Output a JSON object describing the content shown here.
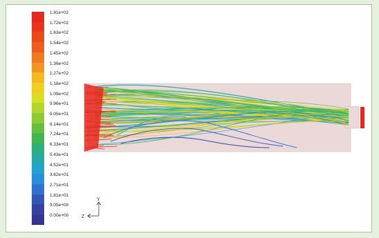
{
  "legend": {
    "labels": [
      "1.81e+02",
      "1.72e+02",
      "1.63e+02",
      "1.54e+02",
      "1.45e+02",
      "1.36e+02",
      "1.27e+02",
      "1.18e+02",
      "1.09e+02",
      "9.96e+01",
      "9.05e+01",
      "8.14e+01",
      "7.24e+01",
      "6.33e+01",
      "5.43e+01",
      "4.52e+01",
      "3.62e+01",
      "2.71e+01",
      "1.81e+01",
      "9.05e+00",
      "0.00e+00"
    ],
    "colors": [
      "#e8281e",
      "#e9361c",
      "#eb4a1c",
      "#ee5d1d",
      "#f07a1f",
      "#f4951f",
      "#f6b81f",
      "#f2cf1f",
      "#d9de22",
      "#b3d62a",
      "#8ccb33",
      "#64bf3d",
      "#3fb652",
      "#2bb07a",
      "#25aaa8",
      "#23a3cf",
      "#2a8fdb",
      "#2f72cf",
      "#3356b8",
      "#3442a4",
      "#35368f"
    ]
  },
  "axes": {
    "vertical_label": "Y",
    "horizontal_label": "Z"
  },
  "colors": {
    "domain_fill": "#ebd9d9",
    "inlet": "#e8281e",
    "outlet": "#e8281e"
  }
}
